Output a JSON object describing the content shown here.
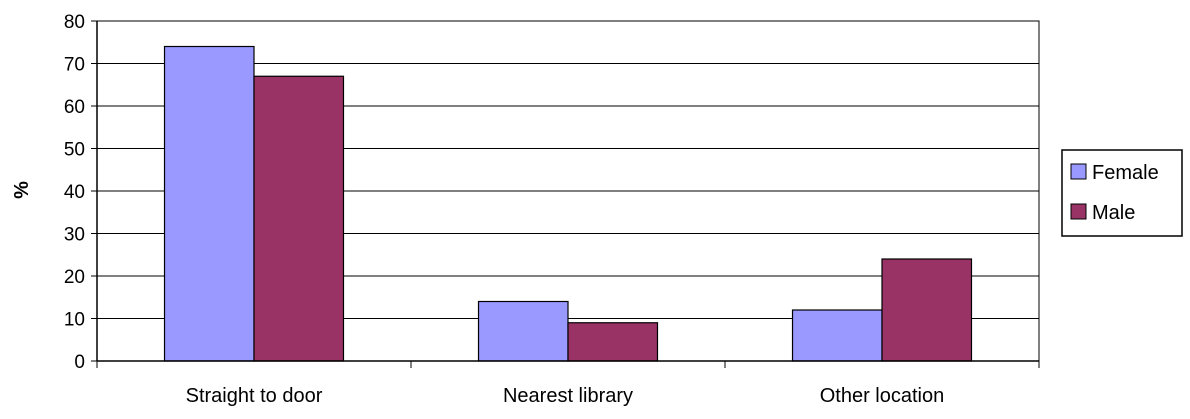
{
  "chart_data": {
    "type": "bar",
    "title": "",
    "xlabel": "",
    "ylabel": "%",
    "ylim": [
      0,
      80
    ],
    "yticks": [
      0,
      10,
      20,
      30,
      40,
      50,
      60,
      70,
      80
    ],
    "grid": true,
    "legend_position": "right",
    "categories": [
      "Straight to door",
      "Nearest library",
      "Other location"
    ],
    "series": [
      {
        "name": "Female",
        "color": "#9999ff",
        "values": [
          74,
          14,
          12
        ]
      },
      {
        "name": "Male",
        "color": "#993366",
        "values": [
          67,
          9,
          24
        ]
      }
    ]
  }
}
